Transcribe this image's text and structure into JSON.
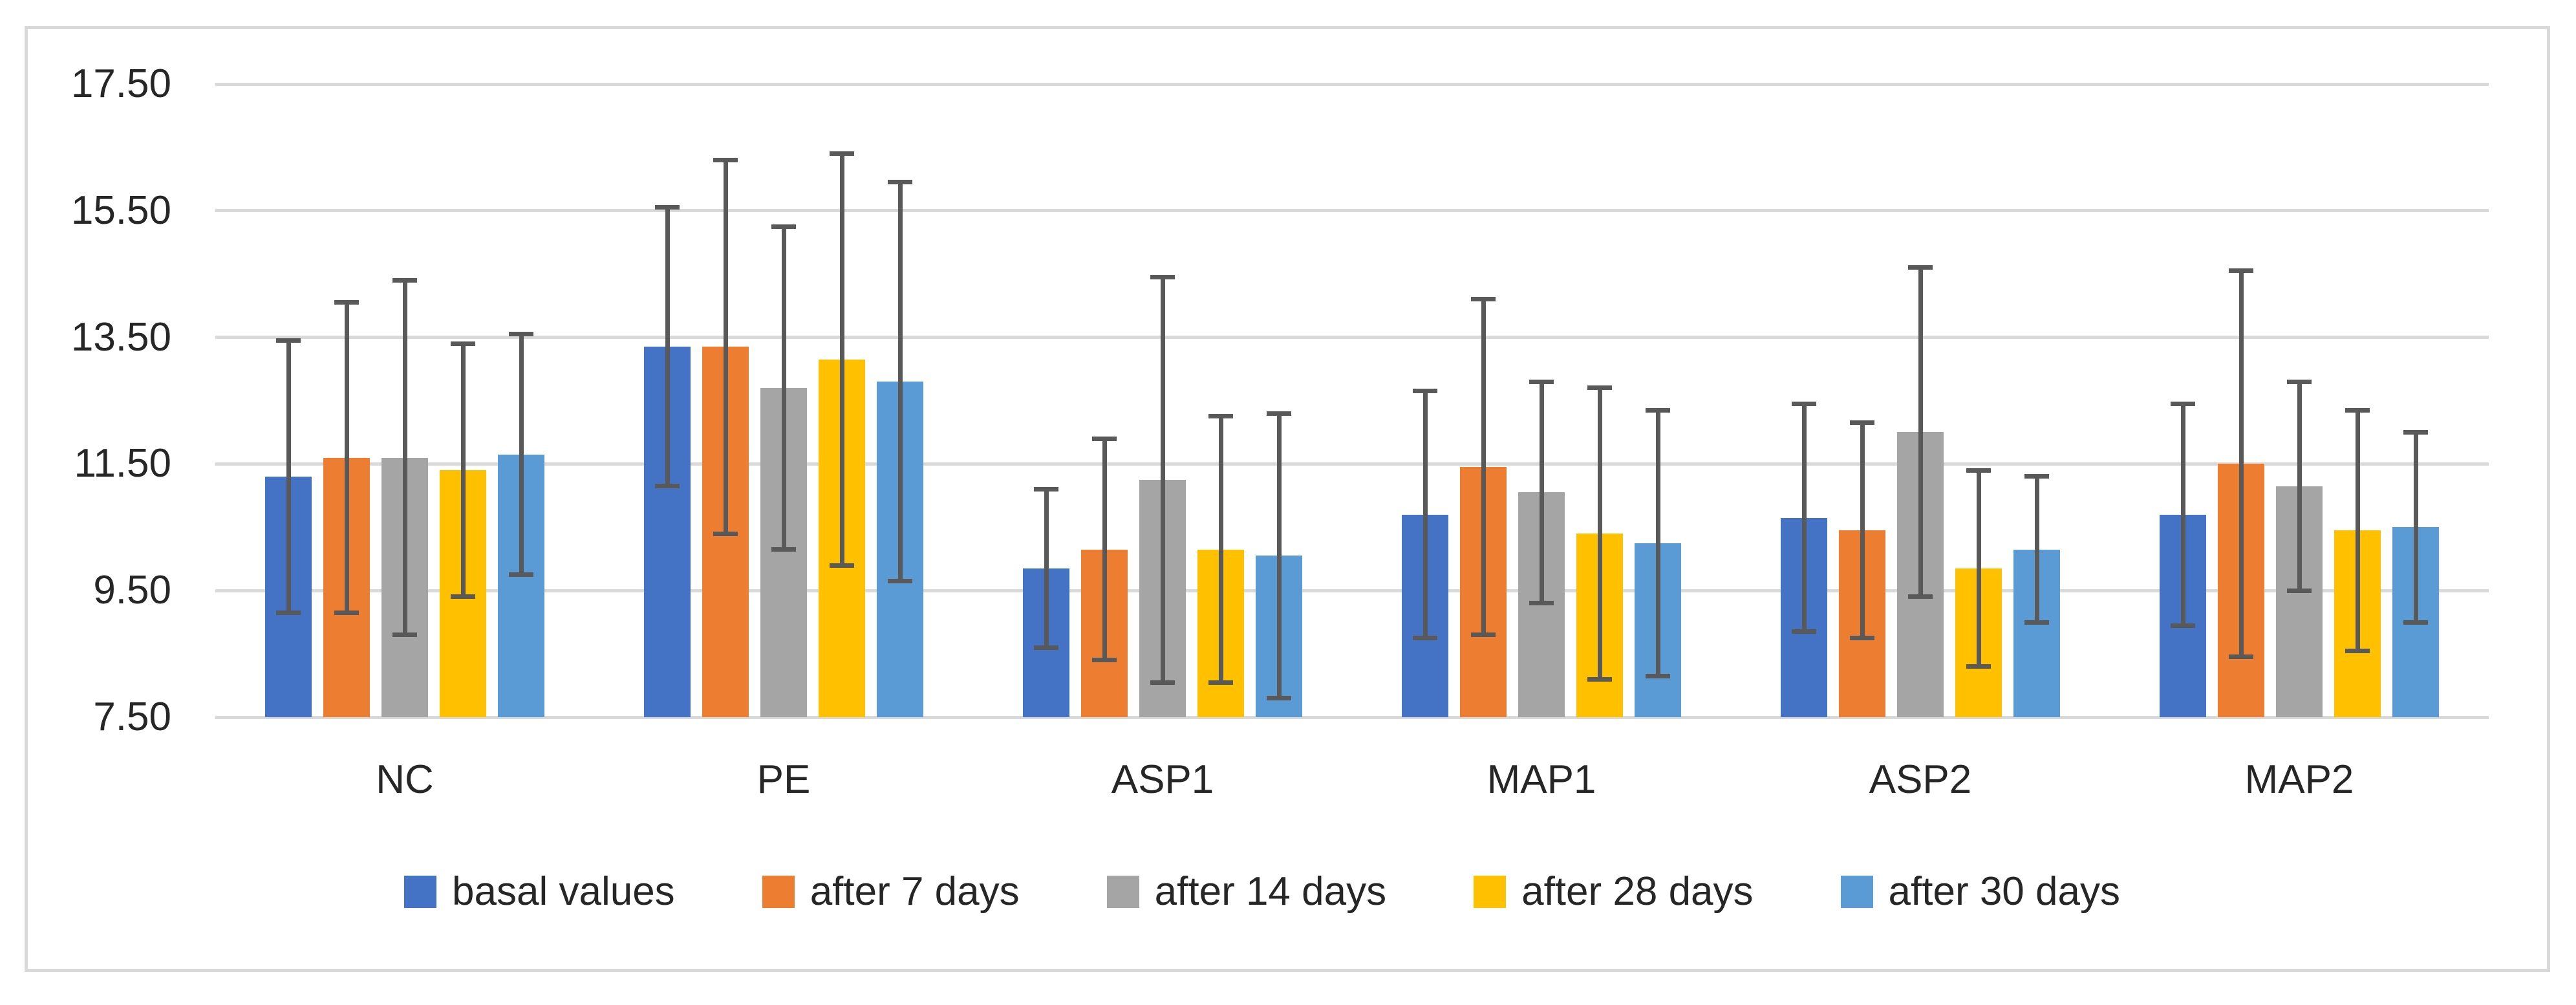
{
  "chart_data": {
    "type": "bar",
    "categories": [
      "NC",
      "PE",
      "ASP1",
      "MAP1",
      "ASP2",
      "MAP2"
    ],
    "series": [
      {
        "name": "basal values",
        "color": "#4472C4",
        "values": [
          11.3,
          13.35,
          9.85,
          10.7,
          10.65,
          10.7
        ],
        "errors": [
          2.15,
          2.2,
          1.25,
          1.95,
          1.8,
          1.75
        ]
      },
      {
        "name": "after 7 days",
        "color": "#ED7D31",
        "values": [
          11.6,
          13.35,
          10.15,
          11.45,
          10.45,
          11.5
        ],
        "errors": [
          2.45,
          2.95,
          1.75,
          2.65,
          1.7,
          3.05
        ]
      },
      {
        "name": "after 14 days",
        "color": "#A5A5A5",
        "values": [
          11.6,
          12.7,
          11.25,
          11.05,
          12.0,
          11.15
        ],
        "errors": [
          2.8,
          2.55,
          3.2,
          1.75,
          2.6,
          1.65
        ]
      },
      {
        "name": "after 28 days",
        "color": "#FFC000",
        "values": [
          11.4,
          13.15,
          10.15,
          10.4,
          9.85,
          10.45
        ],
        "errors": [
          2.0,
          3.25,
          2.1,
          2.3,
          1.55,
          1.9
        ]
      },
      {
        "name": "after 30 days",
        "color": "#5B9BD5",
        "values": [
          11.65,
          12.8,
          10.05,
          10.25,
          10.15,
          10.5
        ],
        "errors": [
          1.9,
          3.15,
          2.25,
          2.1,
          1.15,
          1.5
        ]
      }
    ],
    "y_axis": {
      "min": 7.5,
      "max": 17.5,
      "step": 2.0,
      "tick_labels": [
        "7.50",
        "9.50",
        "11.50",
        "13.50",
        "15.50",
        "17.50"
      ]
    },
    "grid": true,
    "legend_position": "bottom",
    "error_bars": "symmetric",
    "colors": {
      "gridline": "#D9D9D9",
      "frame_border": "#D9D9D9",
      "error_bar": "#595959",
      "text": "#262626",
      "background": "#FFFFFF"
    }
  }
}
